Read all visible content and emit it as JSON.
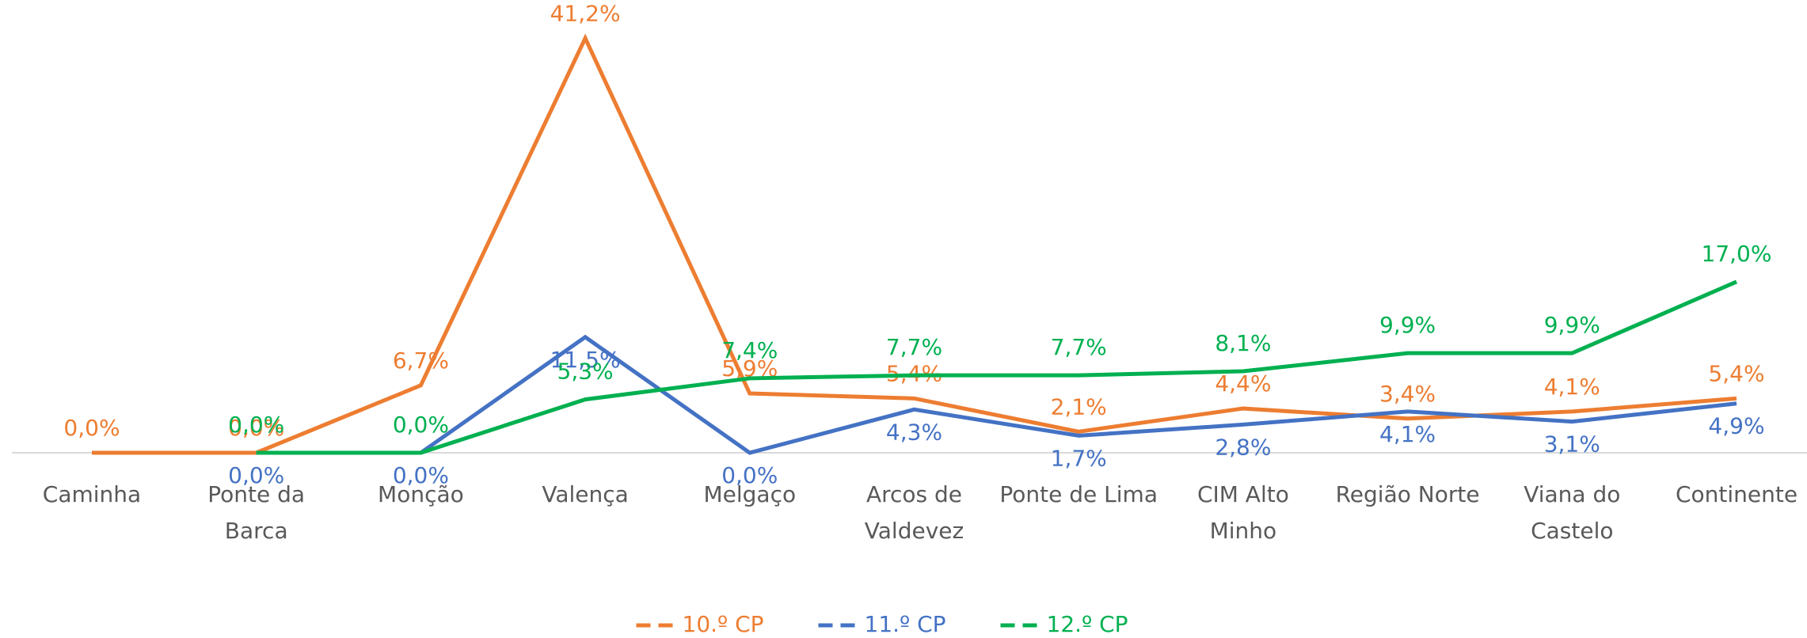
{
  "chart_data": {
    "type": "line",
    "categories": [
      "Caminha",
      "Ponte da Barca",
      "Monção",
      "Valença",
      "Melgaço",
      "Arcos de Valdevez",
      "Ponte de Lima",
      "CIM Alto Minho",
      "Região Norte",
      "Viana do Castelo",
      "Continente"
    ],
    "series": [
      {
        "name": "10.º CP",
        "color": "#ED7D31",
        "values": [
          0.0,
          0.0,
          6.7,
          41.2,
          5.9,
          5.4,
          2.1,
          4.4,
          3.4,
          4.1,
          5.4
        ],
        "value_labels": [
          "0,0%",
          "0,0%",
          "6,7%",
          "41,2%",
          "5,9%",
          "5,4%",
          "2,1%",
          "4,4%",
          "3,4%",
          "4,1%",
          "5,4%"
        ]
      },
      {
        "name": "11.º CP",
        "color": "#4472C4",
        "values": [
          null,
          0.0,
          0.0,
          11.5,
          0.0,
          4.3,
          1.7,
          2.8,
          4.1,
          3.1,
          4.9
        ],
        "value_labels": [
          null,
          "0,0%",
          "0,0%",
          "11,5%",
          "0,0%",
          "4,3%",
          "1,7%",
          "2,8%",
          "4,1%",
          "3,1%",
          "4,9%"
        ]
      },
      {
        "name": "12.º CP",
        "color": "#00B050",
        "values": [
          null,
          0.0,
          0.0,
          5.3,
          7.4,
          7.7,
          7.7,
          8.1,
          9.9,
          9.9,
          17.0
        ],
        "value_labels": [
          null,
          "0,0%",
          "0,0%",
          "5,3%",
          "7,4%",
          "7,7%",
          "7,7%",
          "8,1%",
          "9,9%",
          "9,9%",
          "17,0%"
        ]
      }
    ],
    "ylim": [
      0,
      45
    ],
    "legend": "bottom"
  }
}
